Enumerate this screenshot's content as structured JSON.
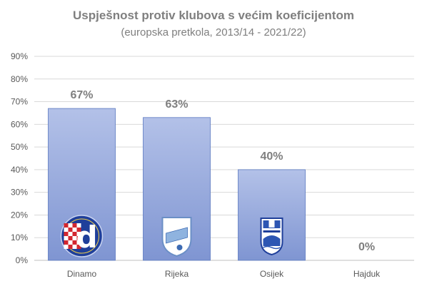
{
  "chart_data": {
    "type": "bar",
    "title": "Uspješnost protiv klubova s većim koeficijentom",
    "subtitle": "(europska pretkola, 2013/14 - 2021/22)",
    "categories": [
      "Dinamo",
      "Rijeka",
      "Osijek",
      "Hajduk"
    ],
    "values": [
      67,
      63,
      40,
      0
    ],
    "data_labels": [
      "67%",
      "63%",
      "40%",
      "0%"
    ],
    "ylim": [
      0,
      90
    ],
    "yticks": [
      "0%",
      "10%",
      "20%",
      "30%",
      "40%",
      "50%",
      "60%",
      "70%",
      "80%",
      "90%"
    ],
    "grid": true,
    "legend": "none",
    "bar_color": "#8fa3d8",
    "bar_color_light": "#aebde6",
    "bar_border": "#5a78c0",
    "logos": [
      "dinamo-logo",
      "rijeka-logo",
      "osijek-logo",
      ""
    ]
  }
}
